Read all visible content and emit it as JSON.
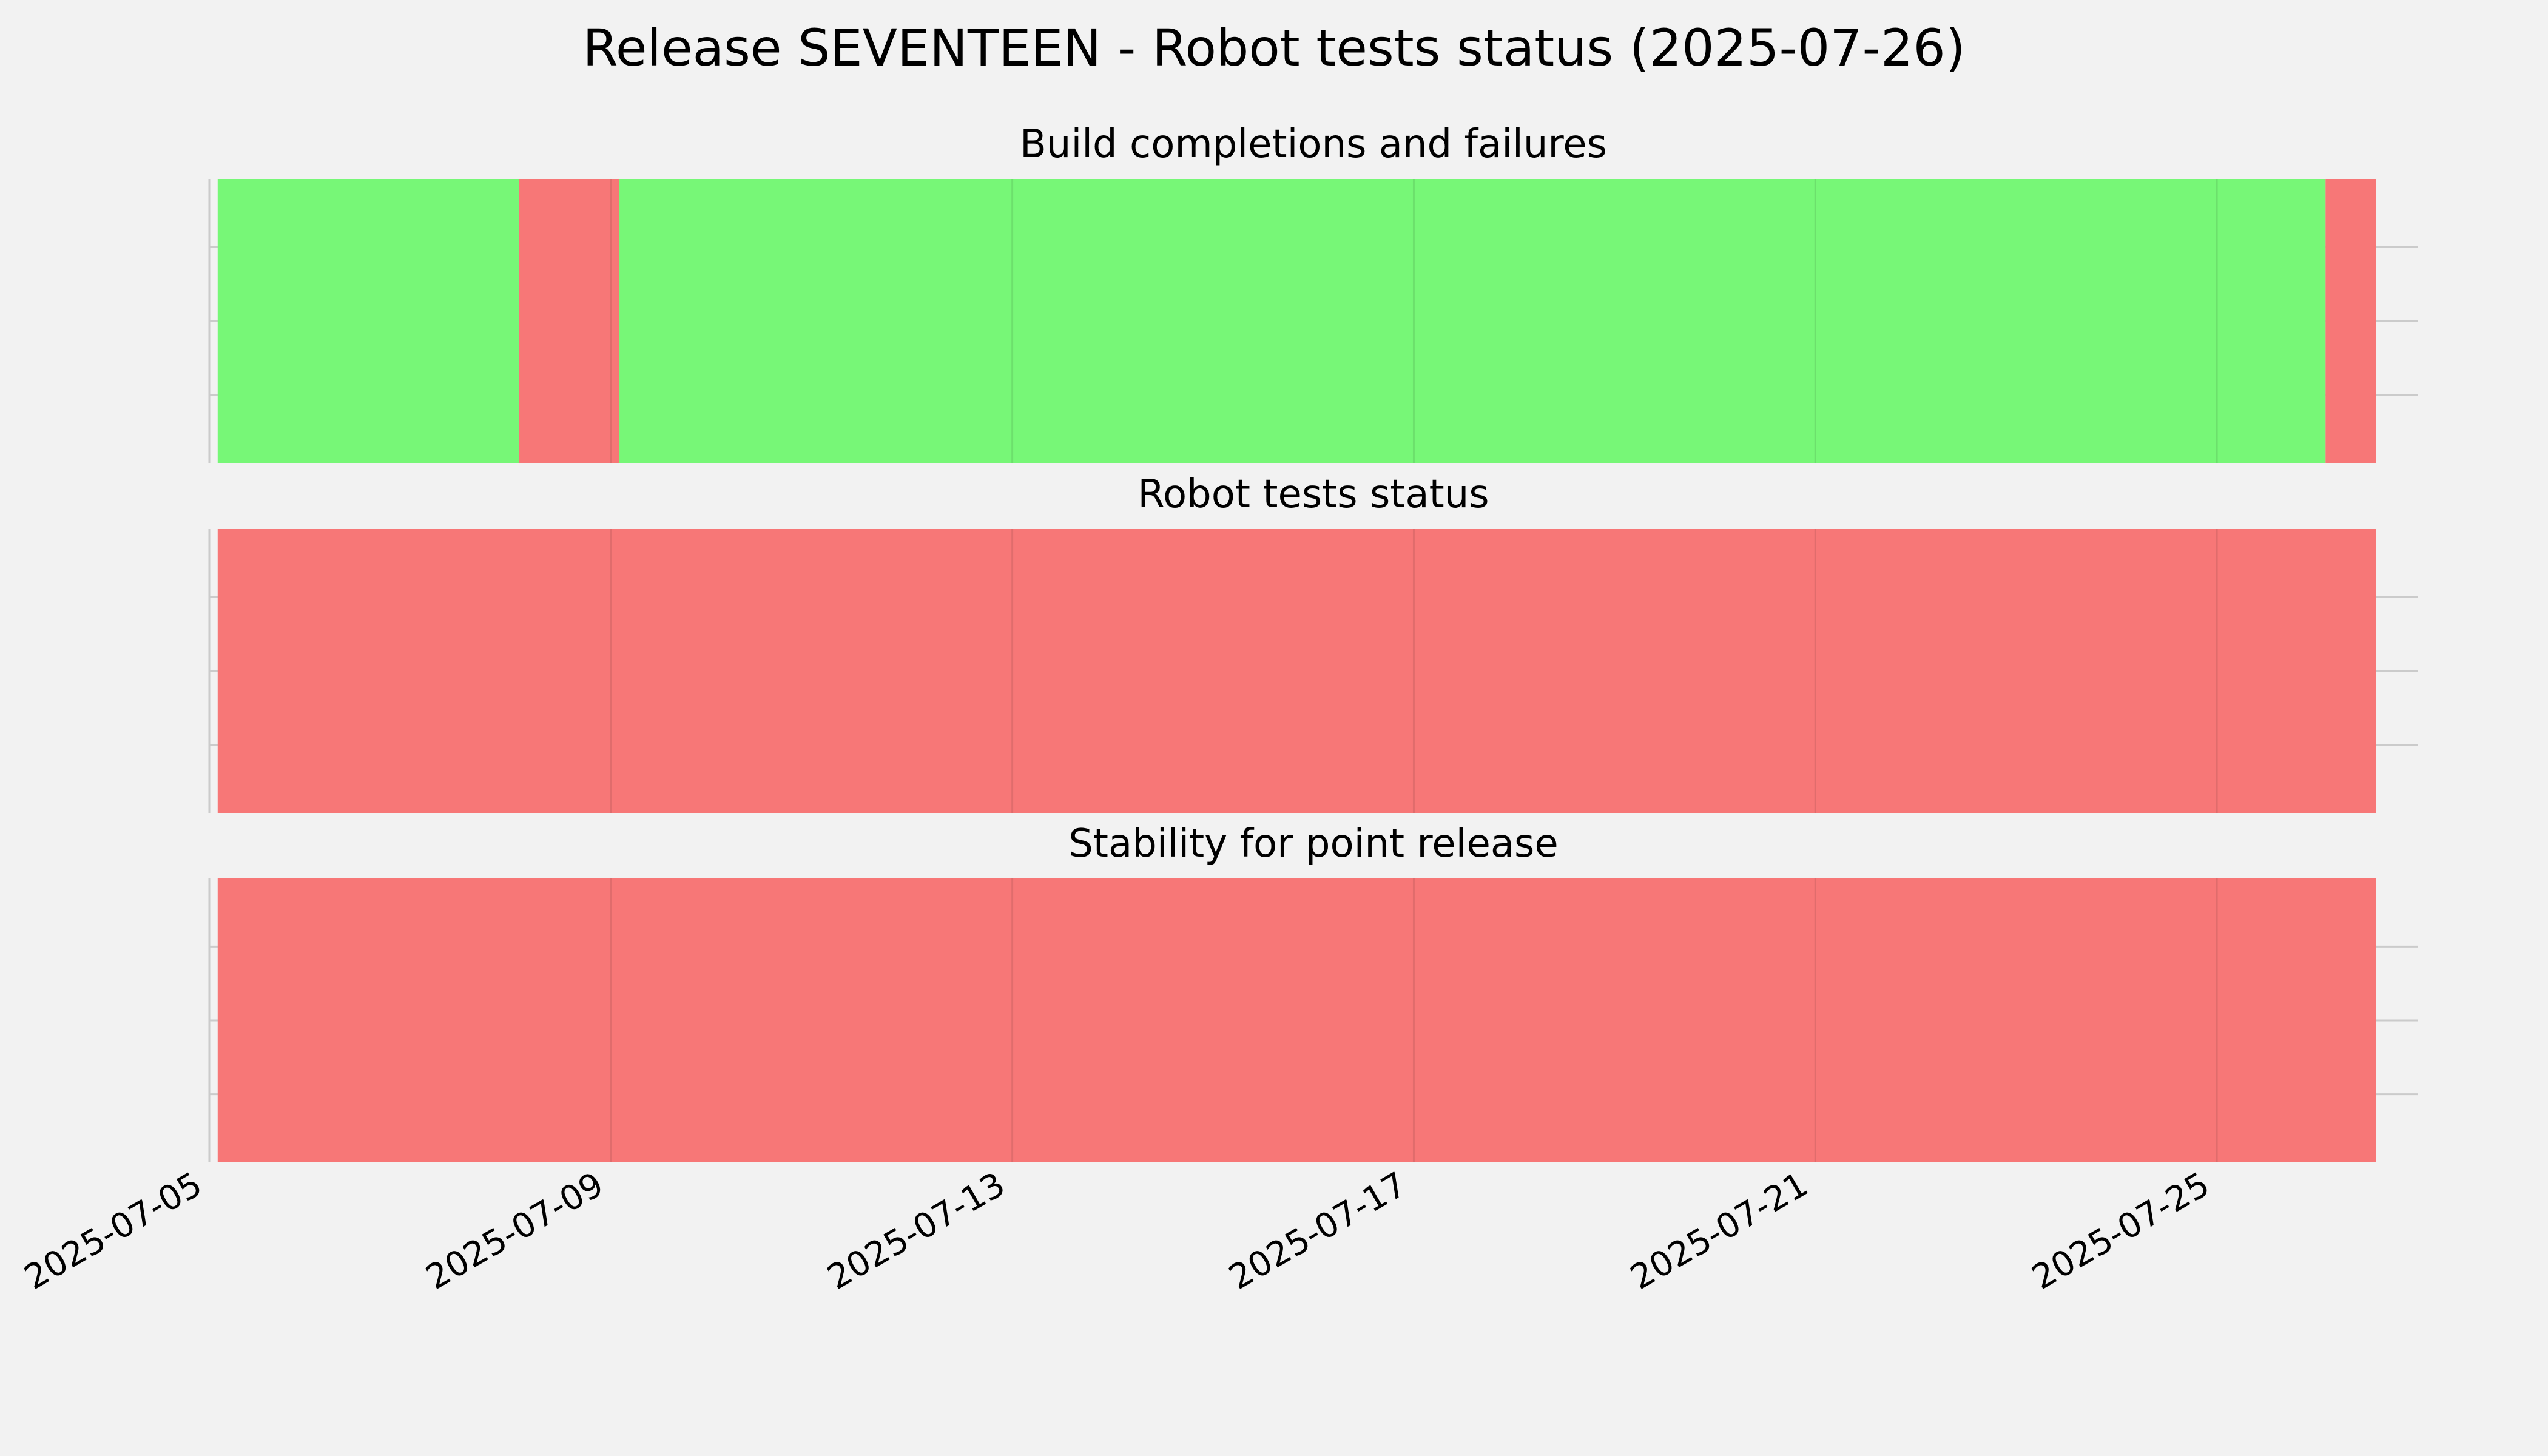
{
  "title": "Release SEVENTEEN - Robot tests status (2025-07-26)",
  "colors": {
    "background": "#f2f2f2",
    "success": "#77f777",
    "failure": "#f77777",
    "grid": "#cbcbcb"
  },
  "chart_data": [
    {
      "type": "bar",
      "title": "Build completions and failures",
      "xlabel": "",
      "ylabel": "",
      "grid": true,
      "xlim": [
        "2025-07-05",
        "2025-07-27"
      ],
      "x_ticks": [
        "2025-07-05",
        "2025-07-09",
        "2025-07-13",
        "2025-07-17",
        "2025-07-21",
        "2025-07-25"
      ],
      "segments": [
        {
          "start": "2025-07-05 02:00",
          "end": "2025-07-08 02:00",
          "status": "pass"
        },
        {
          "start": "2025-07-08 02:00",
          "end": "2025-07-09 02:00",
          "status": "fail"
        },
        {
          "start": "2025-07-09 02:00",
          "end": "2025-07-26 02:00",
          "status": "pass"
        },
        {
          "start": "2025-07-26 02:00",
          "end": "2025-07-26 14:00",
          "status": "fail"
        }
      ]
    },
    {
      "type": "bar",
      "title": "Robot tests status",
      "xlabel": "",
      "ylabel": "",
      "grid": true,
      "xlim": [
        "2025-07-05",
        "2025-07-27"
      ],
      "x_ticks": [
        "2025-07-05",
        "2025-07-09",
        "2025-07-13",
        "2025-07-17",
        "2025-07-21",
        "2025-07-25"
      ],
      "segments": [
        {
          "start": "2025-07-05 02:00",
          "end": "2025-07-26 14:00",
          "status": "fail"
        }
      ]
    },
    {
      "type": "bar",
      "title": "Stability for point release",
      "xlabel": "",
      "ylabel": "",
      "grid": true,
      "xlim": [
        "2025-07-05",
        "2025-07-27"
      ],
      "x_ticks": [
        "2025-07-05",
        "2025-07-09",
        "2025-07-13",
        "2025-07-17",
        "2025-07-21",
        "2025-07-25"
      ],
      "segments": [
        {
          "start": "2025-07-05 02:00",
          "end": "2025-07-26 14:00",
          "status": "fail"
        }
      ]
    }
  ]
}
